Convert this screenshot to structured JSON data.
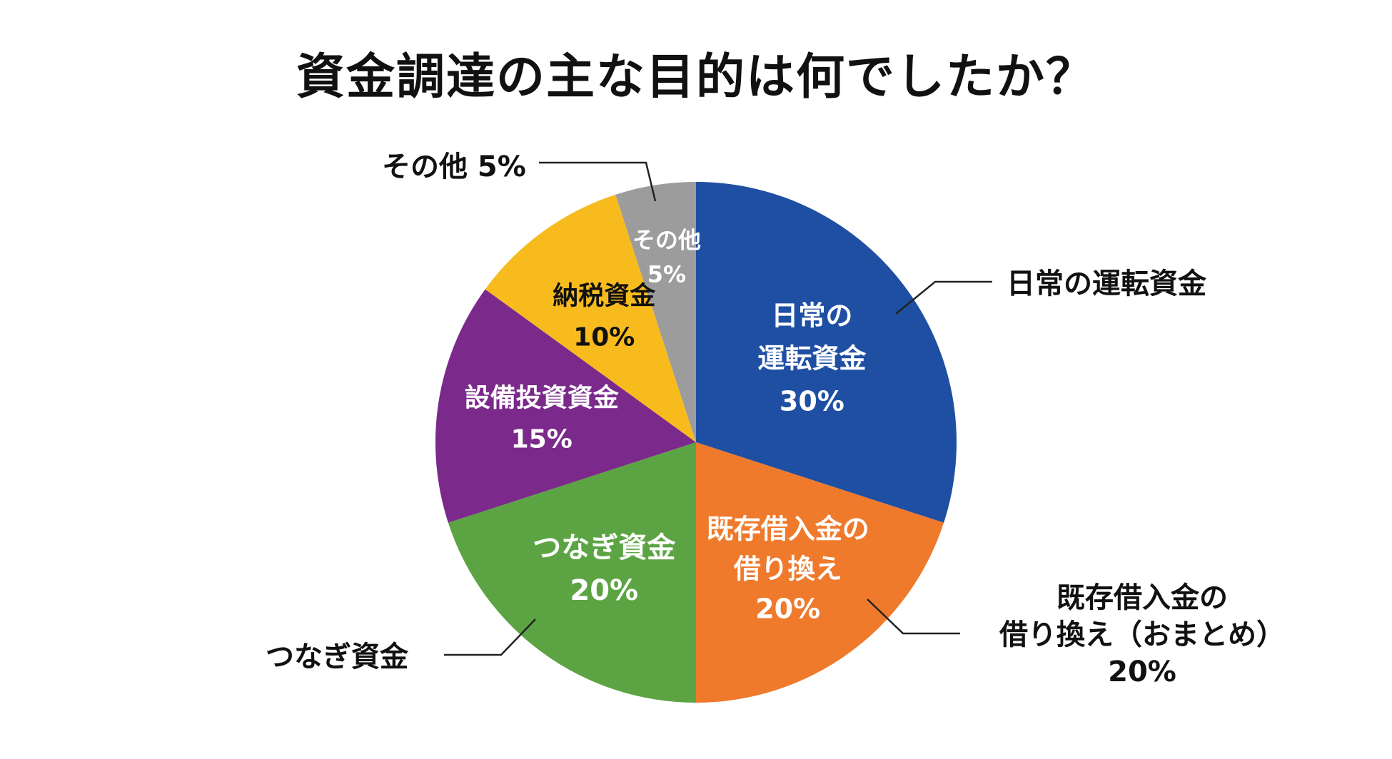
{
  "chart_data": {
    "type": "pie",
    "title": "資金調達の主な目的は何でしたか？",
    "unit": "%",
    "start_angle_deg": 0,
    "direction": "clockwise",
    "slices": [
      {
        "label_lines": [
          "日常の",
          "運転資金"
        ],
        "value": 30,
        "value_text": "30%",
        "color": "#1f4fa3",
        "text_color": "#ffffff"
      },
      {
        "label_lines": [
          "既存借入金の",
          "借り換え"
        ],
        "value": 20,
        "value_text": "20%",
        "color": "#ef7a2c",
        "text_color": "#ffffff"
      },
      {
        "label_lines": [
          "つなぎ資金"
        ],
        "value": 20,
        "value_text": "20%",
        "color": "#5ca443",
        "text_color": "#ffffff"
      },
      {
        "label_lines": [
          "設備投資資金"
        ],
        "value": 15,
        "value_text": "15%",
        "color": "#7b2a8c",
        "text_color": "#ffffff"
      },
      {
        "label_lines": [
          "納税資金"
        ],
        "value": 10,
        "value_text": "10%",
        "color": "#f7bb1e",
        "text_color": "#111111"
      },
      {
        "label_lines": [
          "その他"
        ],
        "value": 5,
        "value_text": "5%",
        "color": "#9c9c9c",
        "text_color": "#ffffff"
      }
    ],
    "callouts": [
      {
        "lines": [
          "その他 5%"
        ]
      },
      {
        "lines": [
          "日常の運転資金"
        ]
      },
      {
        "lines": [
          "既存借入金の",
          "借り換え（おまとめ）",
          "20%"
        ]
      },
      {
        "lines": [
          "つなぎ資金"
        ]
      }
    ]
  }
}
